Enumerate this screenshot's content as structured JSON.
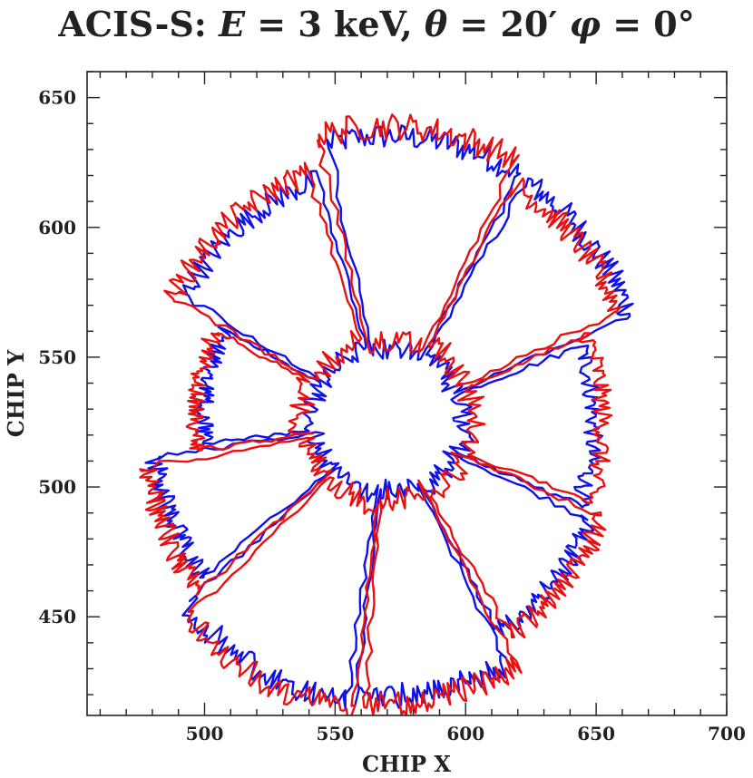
{
  "chart_data": {
    "type": "line",
    "title": {
      "prefix": "ACIS-S: ",
      "e_sym": "E",
      "e_val": " = 3 keV, ",
      "theta_sym": "θ",
      "theta_val": " = 20′ ",
      "phi_sym": "φ",
      "phi_val": " = 0°"
    },
    "xlabel": "CHIP X",
    "ylabel": "CHIP Y",
    "xlim": [
      455,
      700
    ],
    "ylim": [
      412,
      660
    ],
    "x_ticks": [
      500,
      550,
      600,
      650,
      700
    ],
    "y_ticks": [
      450,
      500,
      550,
      600,
      650
    ],
    "center": [
      570,
      525
    ],
    "series": [
      {
        "color": "#1010e8",
        "sectors": [
          {
            "a1": 103,
            "a2": 60,
            "r_out": 113,
            "r_in": 28
          },
          {
            "a1": 58,
            "a2": 22,
            "r_out": 112,
            "r_in": 30
          },
          {
            "a1": 20,
            "a2": -22,
            "r_out": 88,
            "r_in": 32
          },
          {
            "a1": -24,
            "a2": -60,
            "r_out": 95,
            "r_in": 30
          },
          {
            "a1": -62,
            "a2": -97,
            "r_out": 108,
            "r_in": 26
          },
          {
            "a1": -99,
            "a2": -140,
            "r_out": 112,
            "r_in": 28
          },
          {
            "a1": -142,
            "a2": -172,
            "r_out": 100,
            "r_in": 30
          },
          {
            "a1": -174,
            "a2": -208,
            "r_out": 78,
            "r_in": 32
          },
          {
            "a1": -210,
            "a2": -253,
            "r_out": 100,
            "r_in": 30
          }
        ]
      },
      {
        "color": "#e81010",
        "sectors": [
          {
            "a1": 105,
            "a2": 62,
            "r_out": 117,
            "r_in": 32
          },
          {
            "a1": 60,
            "a2": 24,
            "r_out": 108,
            "r_in": 35
          },
          {
            "a1": 22,
            "a2": -20,
            "r_out": 92,
            "r_in": 36
          },
          {
            "a1": -22,
            "a2": -58,
            "r_out": 99,
            "r_in": 34
          },
          {
            "a1": -60,
            "a2": -95,
            "r_out": 111,
            "r_in": 30
          },
          {
            "a1": -97,
            "a2": -138,
            "r_out": 115,
            "r_in": 32
          },
          {
            "a1": -140,
            "a2": -170,
            "r_out": 104,
            "r_in": 34
          },
          {
            "a1": -172,
            "a2": -206,
            "r_out": 82,
            "r_in": 36
          },
          {
            "a1": -208,
            "a2": -251,
            "r_out": 104,
            "r_in": 34
          }
        ]
      }
    ]
  }
}
